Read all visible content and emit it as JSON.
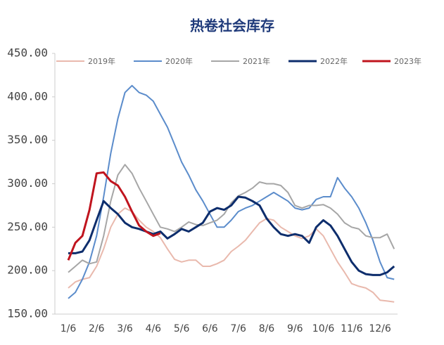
{
  "chart_data": {
    "type": "line",
    "title": "热卷社会库存",
    "categories": [
      "1/6",
      null,
      null,
      null,
      "2/6",
      null,
      null,
      null,
      "3/6",
      null,
      null,
      null,
      "4/6",
      null,
      null,
      null,
      "5/6",
      null,
      null,
      null,
      "6/6",
      null,
      null,
      null,
      "7/6",
      null,
      null,
      null,
      "8/6",
      null,
      null,
      null,
      "9/6",
      null,
      null,
      null,
      "10/6",
      null,
      null,
      null,
      "11/6",
      null,
      null,
      null,
      "12/6",
      null,
      null
    ],
    "series": [
      {
        "name": "2019年",
        "color": "#e9b9ad",
        "values": [
          180,
          187,
          190,
          192,
          205,
          225,
          250,
          265,
          272,
          268,
          258,
          250,
          245,
          238,
          225,
          213,
          210,
          212,
          212,
          205,
          205,
          208,
          212,
          222,
          228,
          235,
          245,
          255,
          260,
          258,
          250,
          245,
          240,
          237,
          240,
          248,
          240,
          225,
          210,
          198,
          185,
          182,
          180,
          175,
          166,
          165,
          164
        ]
      },
      {
        "name": "2020年",
        "color": "#5b8ccb",
        "values": [
          168,
          175,
          190,
          210,
          240,
          285,
          335,
          375,
          405,
          413,
          405,
          402,
          395,
          380,
          365,
          345,
          325,
          310,
          293,
          280,
          265,
          250,
          250,
          258,
          268,
          272,
          275,
          280,
          285,
          290,
          285,
          280,
          272,
          270,
          272,
          282,
          285,
          285,
          307,
          295,
          285,
          272,
          255,
          235,
          210,
          192,
          190
        ]
      },
      {
        "name": "2021年",
        "color": "#a6a6a6",
        "values": [
          198,
          205,
          212,
          208,
          210,
          240,
          280,
          310,
          322,
          312,
          295,
          280,
          265,
          250,
          248,
          245,
          250,
          256,
          253,
          252,
          255,
          258,
          265,
          278,
          286,
          290,
          295,
          302,
          300,
          300,
          298,
          290,
          275,
          272,
          275,
          275,
          276,
          272,
          265,
          255,
          250,
          248,
          240,
          238,
          238,
          242,
          225
        ]
      },
      {
        "name": "2022年",
        "color": "#0d2d6c",
        "values": [
          220,
          220,
          222,
          235,
          258,
          280,
          272,
          265,
          255,
          250,
          248,
          245,
          242,
          245,
          237,
          242,
          248,
          245,
          250,
          255,
          268,
          272,
          270,
          275,
          285,
          284,
          280,
          275,
          260,
          250,
          242,
          240,
          242,
          240,
          232,
          250,
          258,
          252,
          240,
          225,
          210,
          200,
          196,
          195,
          195,
          198,
          205
        ]
      },
      {
        "name": "2023年",
        "color": "#c0141e",
        "values": [
          212,
          232,
          240,
          270,
          312,
          313,
          303,
          298,
          285,
          268,
          252,
          245,
          240,
          243,
          null,
          null,
          null,
          null,
          null,
          null,
          null,
          null,
          null,
          null,
          null,
          null,
          null,
          null,
          null,
          null,
          null,
          null,
          null,
          null,
          null,
          null,
          null,
          null,
          null,
          null,
          null,
          null,
          null,
          null,
          null,
          null,
          null
        ]
      }
    ],
    "ylim": [
      150,
      450
    ],
    "yticks": [
      {
        "value": 150,
        "label": "150.00"
      },
      {
        "value": 200,
        "label": "200.00"
      },
      {
        "value": 250,
        "label": "250.00"
      },
      {
        "value": 300,
        "label": "300.00"
      },
      {
        "value": 350,
        "label": "350.00"
      },
      {
        "value": 400,
        "label": "400.00"
      },
      {
        "value": 450,
        "label": "450.00"
      }
    ],
    "legend": "top"
  }
}
